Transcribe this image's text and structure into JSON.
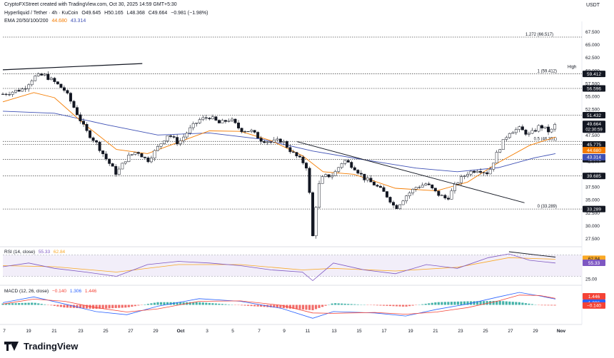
{
  "header": {
    "credit": "CryptoFXStreet created with TradingView.com, Oct 30, 2025 14:59 GMT+5:30",
    "symbol": "Hyperliquid / Tether · 4h · KuCoin",
    "open": "O49.645",
    "high": "H50.165",
    "low": "L48.368",
    "close": "C49.664",
    "change": "−0.981 (−1.98%)",
    "ema_label": "EMA 20/50/100/200",
    "ema_val1": "44.680",
    "ema_val2": "43.314",
    "currency": "USDT"
  },
  "rsi": {
    "label": "RSI (14, close)",
    "val1": "55.33",
    "val2": "62.84"
  },
  "macd": {
    "label": "MACD (12, 26, close)",
    "val1": "−0.140",
    "val2": "1.306",
    "val3": "1.446"
  },
  "footer": {
    "brand": "TradingView"
  },
  "colors": {
    "up": "#131722",
    "down": "#131722",
    "ema_orange": "#f57c00",
    "ema_blue": "#3f51b5",
    "rsi_purple": "#7e57c2",
    "rsi_yellow": "#f9a825",
    "macd_blue": "#2962ff",
    "macd_red": "#f44336",
    "hist_green": "#26a69a",
    "hist_red": "#ef5350",
    "price_tag": "#131722"
  },
  "chart_data": {
    "type": "candlestick",
    "symbol": "Hyperliquid / Tether",
    "timeframe": "4h",
    "ylim": [
      26,
      69
    ],
    "y_ticks": [
      "67.500",
      "65.000",
      "62.500",
      "60.000",
      "57.500",
      "55.000",
      "52.500",
      "50.000",
      "47.500",
      "45.000",
      "42.500",
      "40.000",
      "37.500",
      "35.000",
      "32.500",
      "30.000",
      "27.500"
    ],
    "x_labels": [
      "7",
      "19",
      "21",
      "23",
      "25",
      "27",
      "29",
      "Oct",
      "3",
      "5",
      "7",
      "9",
      "11",
      "13",
      "15",
      "17",
      "19",
      "21",
      "23",
      "25",
      "27",
      "29",
      "Nov"
    ],
    "levels": [
      {
        "value": 66.517,
        "label": "1.272 (66.517)",
        "tag": ""
      },
      {
        "value": 59.412,
        "label": "1 (59.412)",
        "tag": "59.412"
      },
      {
        "value": 56.596,
        "label": "",
        "tag": "56.596"
      },
      {
        "value": 51.432,
        "label": "",
        "tag": "51.432"
      },
      {
        "value": 46.351,
        "label": "0.5 (46.351)",
        "tag": ""
      },
      {
        "value": 45.775,
        "label": "",
        "tag": "45.775"
      },
      {
        "value": 42.892,
        "label": "",
        "tag": "42.892"
      },
      {
        "value": 39.685,
        "label": "",
        "tag": "39.685"
      },
      {
        "value": 33.289,
        "label": "0 (33.289)",
        "tag": "33.289"
      }
    ],
    "high_label": "High",
    "last_price": "49.664",
    "countdown": "02:30:59",
    "ema_tags": [
      "44.680",
      "43.314"
    ],
    "price_path": [
      [
        0,
        55.5
      ],
      [
        4,
        56.5
      ],
      [
        6,
        58.8
      ],
      [
        8,
        59.2
      ],
      [
        10,
        57.8
      ],
      [
        12,
        56.2
      ],
      [
        14,
        52.5
      ],
      [
        16,
        48.5
      ],
      [
        18,
        46.2
      ],
      [
        20,
        43.0
      ],
      [
        22,
        40.1
      ],
      [
        24,
        43.2
      ],
      [
        26,
        44.5
      ],
      [
        28,
        42.6
      ],
      [
        30,
        45.2
      ],
      [
        32,
        47.8
      ],
      [
        34,
        46.0
      ],
      [
        36,
        48.5
      ],
      [
        38,
        50.5
      ],
      [
        40,
        51.1
      ],
      [
        42,
        49.8
      ],
      [
        44,
        50.7
      ],
      [
        46,
        48.6
      ],
      [
        48,
        48.4
      ],
      [
        50,
        46.7
      ],
      [
        52,
        46.2
      ],
      [
        54,
        46.6
      ],
      [
        56,
        44.2
      ],
      [
        58,
        42.5
      ],
      [
        59,
        41.2
      ],
      [
        60,
        28.0
      ],
      [
        61,
        37.5
      ],
      [
        62,
        39.5
      ],
      [
        64,
        39.9
      ],
      [
        66,
        42.8
      ],
      [
        68,
        41.4
      ],
      [
        70,
        39.2
      ],
      [
        72,
        38.0
      ],
      [
        74,
        36.3
      ],
      [
        75,
        35.0
      ],
      [
        76,
        33.4
      ],
      [
        78,
        35.8
      ],
      [
        80,
        37.5
      ],
      [
        82,
        38.2
      ],
      [
        84,
        36.3
      ],
      [
        86,
        35.2
      ],
      [
        88,
        38.5
      ],
      [
        90,
        40.3
      ],
      [
        92,
        41.0
      ],
      [
        94,
        40.2
      ],
      [
        96,
        44.8
      ],
      [
        98,
        48.2
      ],
      [
        100,
        48.8
      ],
      [
        102,
        47.6
      ],
      [
        104,
        49.4
      ],
      [
        106,
        48.1
      ],
      [
        107,
        49.66
      ]
    ],
    "ema20": [
      [
        0,
        54.0
      ],
      [
        6,
        55.8
      ],
      [
        10,
        54.8
      ],
      [
        16,
        49.5
      ],
      [
        22,
        44.8
      ],
      [
        28,
        44.0
      ],
      [
        34,
        46.2
      ],
      [
        40,
        48.4
      ],
      [
        46,
        48.3
      ],
      [
        52,
        46.5
      ],
      [
        58,
        43.6
      ],
      [
        62,
        40.5
      ],
      [
        68,
        40.0
      ],
      [
        76,
        37.3
      ],
      [
        84,
        36.8
      ],
      [
        90,
        38.5
      ],
      [
        96,
        42.3
      ],
      [
        102,
        45.6
      ],
      [
        107,
        47.2
      ]
    ],
    "ema100": [
      [
        0,
        52.2
      ],
      [
        10,
        51.8
      ],
      [
        20,
        49.6
      ],
      [
        30,
        47.6
      ],
      [
        40,
        48.0
      ],
      [
        50,
        46.8
      ],
      [
        60,
        44.5
      ],
      [
        70,
        42.8
      ],
      [
        80,
        41.2
      ],
      [
        88,
        40.5
      ],
      [
        96,
        41.3
      ],
      [
        103,
        43.2
      ],
      [
        107,
        44.0
      ]
    ],
    "trendline_top": [
      [
        0,
        60.2
      ],
      [
        27,
        61.4
      ]
    ],
    "trendline_down": [
      [
        57,
        46.3
      ],
      [
        101,
        34.5
      ]
    ],
    "rsi_ylim": [
      20,
      80
    ],
    "rsi_y_ticks": [
      "25.00"
    ],
    "rsi_values": [
      [
        0,
        48
      ],
      [
        5,
        55
      ],
      [
        10,
        45
      ],
      [
        16,
        38
      ],
      [
        22,
        30
      ],
      [
        28,
        52
      ],
      [
        34,
        58
      ],
      [
        40,
        55
      ],
      [
        46,
        50
      ],
      [
        52,
        42
      ],
      [
        58,
        38
      ],
      [
        60,
        22
      ],
      [
        64,
        55
      ],
      [
        70,
        42
      ],
      [
        76,
        35
      ],
      [
        82,
        52
      ],
      [
        88,
        45
      ],
      [
        94,
        65
      ],
      [
        98,
        72
      ],
      [
        102,
        60
      ],
      [
        107,
        55
      ]
    ],
    "rsi_ma": [
      [
        0,
        50
      ],
      [
        10,
        48
      ],
      [
        22,
        38
      ],
      [
        34,
        52
      ],
      [
        46,
        52
      ],
      [
        58,
        42
      ],
      [
        64,
        45
      ],
      [
        76,
        40
      ],
      [
        88,
        47
      ],
      [
        98,
        65
      ],
      [
        107,
        62
      ]
    ],
    "macd_ylim": [
      -3.6,
      3.6
    ],
    "macd_values": [
      [
        0,
        0.5
      ],
      [
        6,
        1.8
      ],
      [
        12,
        0.2
      ],
      [
        18,
        -1.5
      ],
      [
        24,
        -2.2
      ],
      [
        30,
        -0.3
      ],
      [
        38,
        1.4
      ],
      [
        46,
        0.8
      ],
      [
        54,
        -0.8
      ],
      [
        60,
        -3.0
      ],
      [
        64,
        -1.5
      ],
      [
        72,
        -1.8
      ],
      [
        78,
        -2.5
      ],
      [
        84,
        -1.0
      ],
      [
        90,
        0.2
      ],
      [
        96,
        1.8
      ],
      [
        100,
        2.8
      ],
      [
        104,
        2.0
      ],
      [
        107,
        1.3
      ]
    ],
    "macd_signal": [
      [
        0,
        0.2
      ],
      [
        6,
        1.3
      ],
      [
        12,
        0.8
      ],
      [
        18,
        -0.6
      ],
      [
        24,
        -1.6
      ],
      [
        30,
        -0.9
      ],
      [
        38,
        0.8
      ],
      [
        46,
        0.9
      ],
      [
        54,
        -0.1
      ],
      [
        60,
        -1.8
      ],
      [
        64,
        -1.9
      ],
      [
        72,
        -1.7
      ],
      [
        78,
        -2.1
      ],
      [
        84,
        -1.6
      ],
      [
        90,
        -0.6
      ],
      [
        96,
        0.9
      ],
      [
        100,
        2.2
      ],
      [
        104,
        2.1
      ],
      [
        107,
        1.45
      ]
    ]
  }
}
